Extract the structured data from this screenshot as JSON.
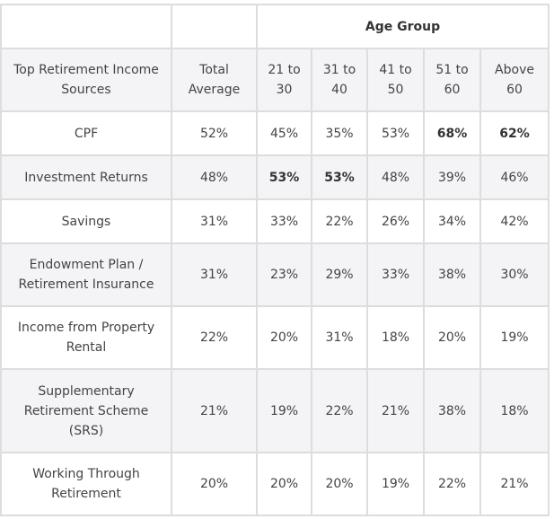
{
  "chart_data": {
    "type": "table",
    "group_header": "Age Group",
    "columns": [
      "Top Retirement Income Sources",
      "Total Average",
      "21 to 30",
      "31 to 40",
      "41 to 50",
      "51 to 60",
      "Above 60"
    ],
    "rows": [
      {
        "label": "CPF",
        "values": [
          "52%",
          "45%",
          "35%",
          "53%",
          "68%",
          "62%"
        ],
        "bold": [
          false,
          false,
          false,
          false,
          true,
          true
        ]
      },
      {
        "label": "Investment Returns",
        "values": [
          "48%",
          "53%",
          "53%",
          "48%",
          "39%",
          "46%"
        ],
        "bold": [
          false,
          true,
          true,
          false,
          false,
          false
        ]
      },
      {
        "label": "Savings",
        "values": [
          "31%",
          "33%",
          "22%",
          "26%",
          "34%",
          "42%"
        ],
        "bold": [
          false,
          false,
          false,
          false,
          false,
          false
        ]
      },
      {
        "label": "Endowment Plan / Retirement Insurance",
        "values": [
          "31%",
          "23%",
          "29%",
          "33%",
          "38%",
          "30%"
        ],
        "bold": [
          false,
          false,
          false,
          false,
          false,
          false
        ]
      },
      {
        "label": "Income from Property Rental",
        "values": [
          "22%",
          "20%",
          "31%",
          "18%",
          "20%",
          "19%"
        ],
        "bold": [
          false,
          false,
          false,
          false,
          false,
          false
        ]
      },
      {
        "label": "Supplementary Retirement Scheme (SRS)",
        "values": [
          "21%",
          "19%",
          "22%",
          "21%",
          "38%",
          "18%"
        ],
        "bold": [
          false,
          false,
          false,
          false,
          false,
          false
        ]
      },
      {
        "label": "Working Through Retirement",
        "values": [
          "20%",
          "20%",
          "20%",
          "19%",
          "22%",
          "21%"
        ],
        "bold": [
          false,
          false,
          false,
          false,
          false,
          false
        ]
      }
    ]
  }
}
